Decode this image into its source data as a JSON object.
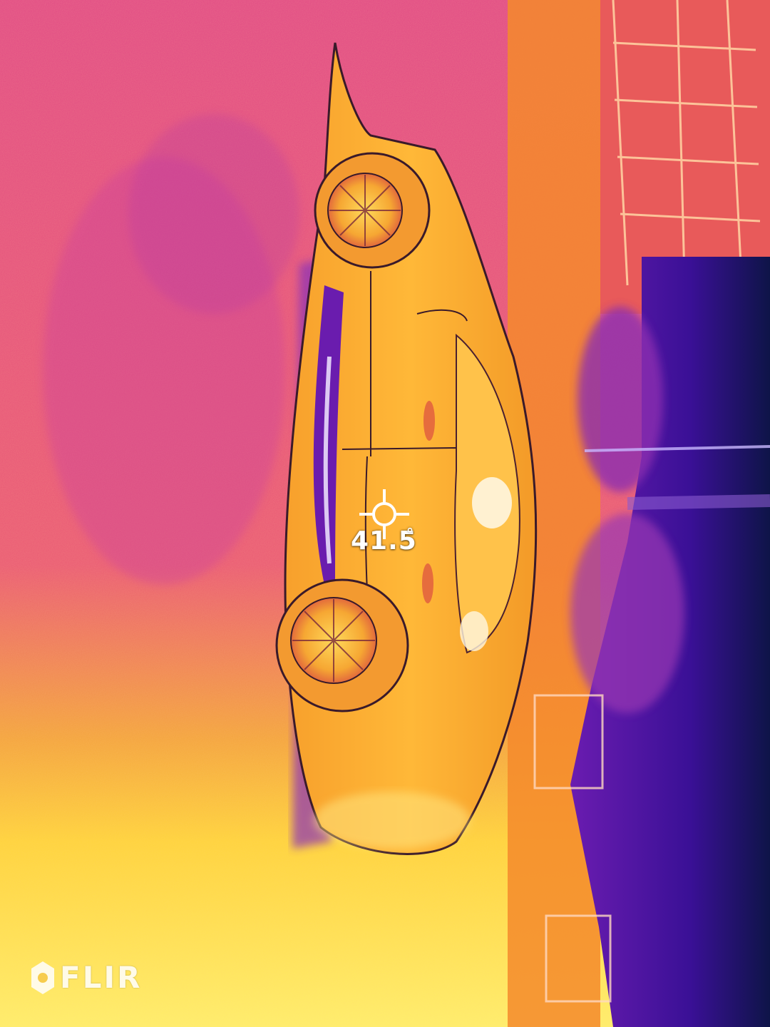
{
  "readout": {
    "temperature": "41.5",
    "unit": "°"
  },
  "logo": {
    "brand": "FLIR"
  },
  "icons": {
    "spot_meter": "crosshair-icon",
    "brand_mark": "flir-mark-icon"
  },
  "palette": {
    "scheme": "iron",
    "hot": "#fff9b0",
    "warm": "#ffcc33",
    "mid": "#ff8a2a",
    "medium_cool": "#e4407c",
    "cool": "#b02ca6",
    "cold": "#4a14a6",
    "coldest": "#0a1240"
  }
}
